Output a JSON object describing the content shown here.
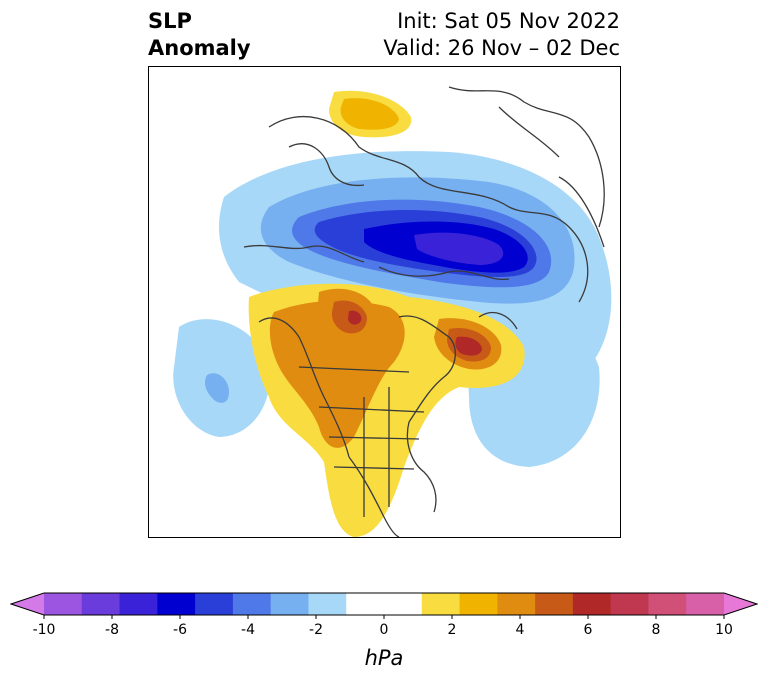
{
  "title": {
    "left_line1": "SLP",
    "left_line2": "Anomaly",
    "right_line1": "Init: Sat 05 Nov 2022",
    "right_line2": "Valid: 26 Nov – 02 Dec"
  },
  "colorbar": {
    "min": -10,
    "max": 10,
    "step": 1,
    "ticks": [
      "-10",
      "-8",
      "-6",
      "-4",
      "-2",
      "0",
      "2",
      "4",
      "6",
      "8",
      "10"
    ],
    "colors": [
      "#d47ae8",
      "#9c55e0",
      "#6a3cdc",
      "#3a22d8",
      "#0000d0",
      "#2a3fd8",
      "#4f78e8",
      "#76b0f0",
      "#a8d8f8",
      "#ffffff",
      "#ffffff",
      "#f8dc40",
      "#f0b400",
      "#e08c10",
      "#c85a18",
      "#b02828",
      "#c03850",
      "#d05078",
      "#d860a8",
      "#e878d8"
    ],
    "units": "hPa"
  }
}
